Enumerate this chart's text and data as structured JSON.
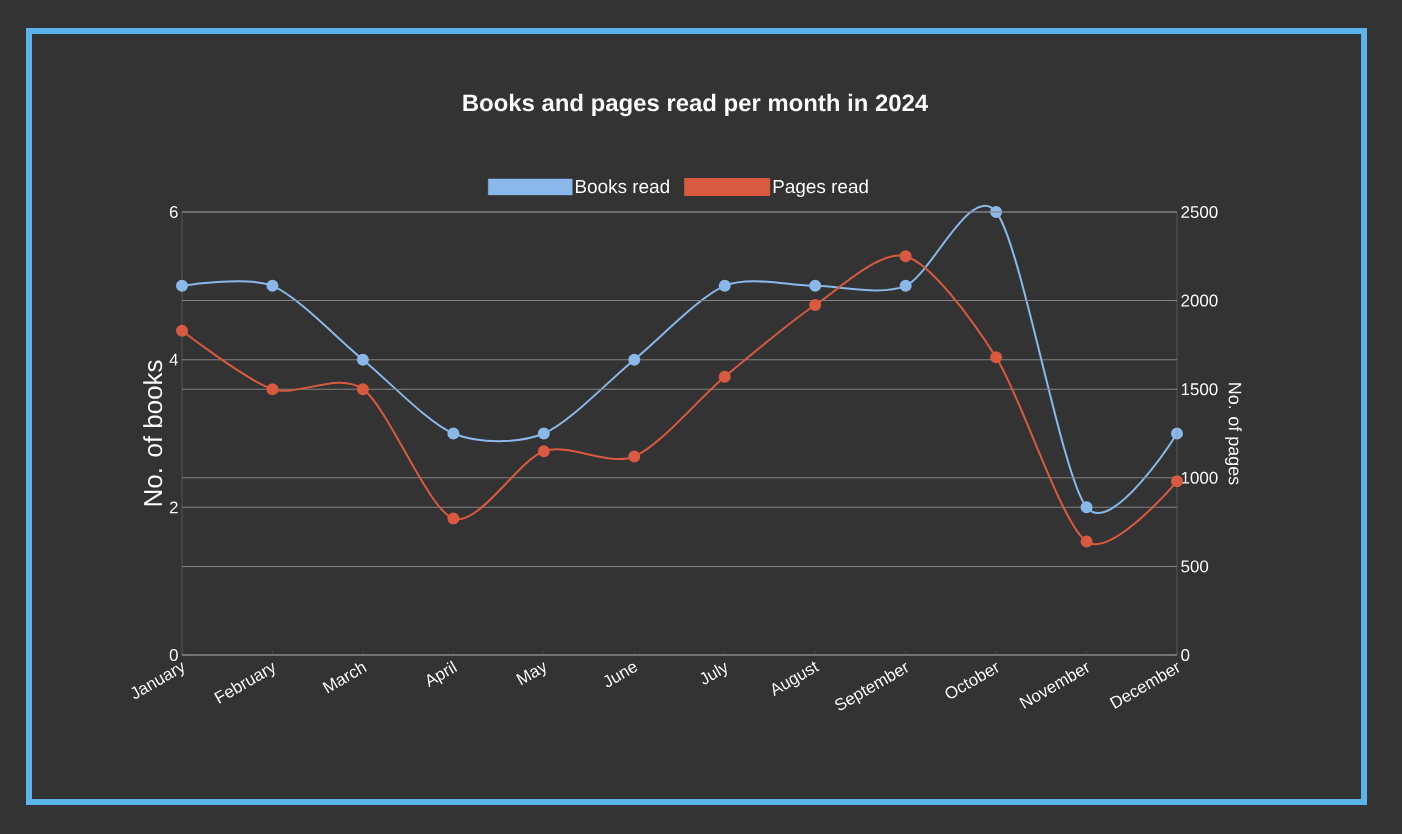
{
  "chart_data": {
    "type": "line",
    "title": "Books and pages read per month in 2024",
    "categories": [
      "January",
      "February",
      "March",
      "April",
      "May",
      "June",
      "July",
      "August",
      "September",
      "October",
      "November",
      "December"
    ],
    "series": [
      {
        "name": "Books read",
        "color": "#8ab8ea",
        "values": [
          5,
          5,
          4,
          3,
          3,
          4,
          5,
          5,
          5,
          6,
          2,
          3
        ]
      },
      {
        "name": "Pages read",
        "color": "#d95a40",
        "axis": "y2",
        "values": [
          1830,
          1500,
          1500,
          770,
          1150,
          1120,
          1570,
          1975,
          2250,
          1680,
          640,
          980
        ]
      }
    ],
    "ylabel": "No. of books",
    "y2label": "No. of pages",
    "ylim": [
      0,
      6
    ],
    "yticks": [
      0,
      2,
      4,
      6
    ],
    "y2lim": [
      0,
      2500
    ],
    "y2ticks": [
      0,
      500,
      1000,
      1500,
      2000,
      2500
    ],
    "grid": true,
    "legend": "top",
    "marker": "circle"
  }
}
